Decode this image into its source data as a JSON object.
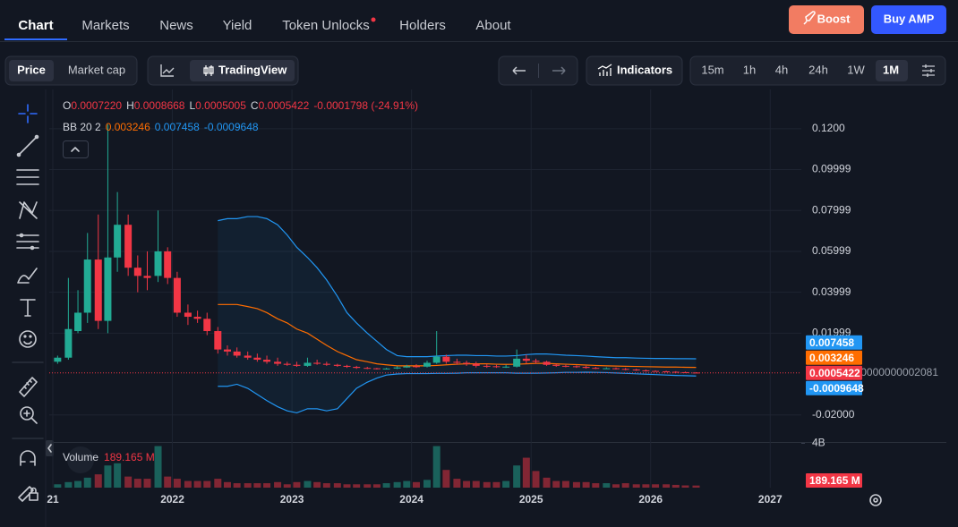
{
  "nav": {
    "tabs": [
      "Chart",
      "Markets",
      "News",
      "Yield",
      "Token Unlocks",
      "Holders",
      "About"
    ],
    "boost": "Boost",
    "buy": "Buy AMP"
  },
  "toolbar": {
    "price": "Price",
    "market_cap": "Market cap",
    "tradingview": "TradingView",
    "indicators": "Indicators",
    "intervals": [
      "15m",
      "1h",
      "4h",
      "24h",
      "1W",
      "1M"
    ]
  },
  "legend": {
    "ohlc": [
      {
        "key": "O",
        "value": "0.0007220"
      },
      {
        "key": "H",
        "value": "0.0008668"
      },
      {
        "key": "L",
        "value": "0.0005005"
      },
      {
        "key": "C",
        "value": "0.0005422"
      }
    ],
    "change": "-0.0001798 (-24.91%)",
    "bb_label": "BB 20 2",
    "volume_label": "Volume",
    "volume_value": "189.165 M"
  },
  "chart": {
    "type": "candlestick",
    "up_color": "#22ab94",
    "down_color": "#f23645",
    "grid": true,
    "x": [
      2021.04,
      2021.13,
      2021.21,
      2021.29,
      2021.38,
      2021.46,
      2021.54,
      2021.63,
      2021.71,
      2021.79,
      2021.88,
      2021.96,
      2022.04,
      2022.13,
      2022.21,
      2022.29,
      2022.38,
      2022.46,
      2022.54,
      2022.63,
      2022.71,
      2022.79,
      2022.88,
      2022.96,
      2023.04,
      2023.13,
      2023.21,
      2023.29,
      2023.38,
      2023.46,
      2023.54,
      2023.63,
      2023.71,
      2023.79,
      2023.88,
      2023.96,
      2024.04,
      2024.13,
      2024.21,
      2024.29,
      2024.38,
      2024.46,
      2024.54,
      2024.63,
      2024.71,
      2024.79,
      2024.88,
      2024.96,
      2025.04,
      2025.13,
      2025.21,
      2025.29,
      2025.38,
      2025.46,
      2025.54,
      2025.63,
      2025.71,
      2025.79,
      2025.88,
      2025.96,
      2026.04,
      2026.13,
      2026.21,
      2026.29,
      2026.38
    ],
    "open": [
      0.006,
      0.008,
      0.021,
      0.03,
      0.056,
      0.026,
      0.057,
      0.073,
      0.052,
      0.048,
      0.048,
      0.06,
      0.047,
      0.03,
      0.028,
      0.027,
      0.021,
      0.012,
      0.011,
      0.009,
      0.008,
      0.007,
      0.006,
      0.005,
      0.0045,
      0.004,
      0.0055,
      0.005,
      0.0045,
      0.004,
      0.0035,
      0.003,
      0.0028,
      0.0025,
      0.0027,
      0.0032,
      0.0038,
      0.0036,
      0.0055,
      0.0085,
      0.006,
      0.0055,
      0.005,
      0.004,
      0.0038,
      0.0035,
      0.0036,
      0.0075,
      0.0065,
      0.006,
      0.0045,
      0.004,
      0.0038,
      0.0035,
      0.003,
      0.0028,
      0.0028,
      0.0025,
      0.0022,
      0.0018,
      0.0015,
      0.0013,
      0.0011,
      0.0009,
      0.000722
    ],
    "high": [
      0.009,
      0.047,
      0.041,
      0.069,
      0.078,
      0.122,
      0.089,
      0.078,
      0.058,
      0.06,
      0.08,
      0.062,
      0.05,
      0.034,
      0.031,
      0.03,
      0.023,
      0.014,
      0.013,
      0.011,
      0.01,
      0.009,
      0.008,
      0.006,
      0.006,
      0.008,
      0.007,
      0.006,
      0.005,
      0.0045,
      0.004,
      0.0035,
      0.003,
      0.003,
      0.0038,
      0.0045,
      0.0048,
      0.0065,
      0.021,
      0.0095,
      0.0075,
      0.0065,
      0.006,
      0.005,
      0.0045,
      0.0045,
      0.012,
      0.0095,
      0.0075,
      0.0065,
      0.005,
      0.0045,
      0.0042,
      0.004,
      0.0035,
      0.0033,
      0.0032,
      0.003,
      0.0026,
      0.0022,
      0.0018,
      0.0016,
      0.0014,
      0.0012,
      0.0008668
    ],
    "low": [
      0.005,
      0.007,
      0.02,
      0.025,
      0.022,
      0.02,
      0.05,
      0.048,
      0.04,
      0.041,
      0.045,
      0.044,
      0.028,
      0.024,
      0.025,
      0.019,
      0.01,
      0.009,
      0.008,
      0.007,
      0.006,
      0.005,
      0.004,
      0.004,
      0.0035,
      0.0035,
      0.0045,
      0.004,
      0.0035,
      0.003,
      0.0025,
      0.0024,
      0.0022,
      0.0022,
      0.0024,
      0.003,
      0.003,
      0.0032,
      0.005,
      0.005,
      0.0045,
      0.004,
      0.0032,
      0.003,
      0.003,
      0.003,
      0.0032,
      0.005,
      0.005,
      0.004,
      0.0035,
      0.0033,
      0.003,
      0.0026,
      0.0024,
      0.0024,
      0.0022,
      0.0018,
      0.0015,
      0.0012,
      0.0011,
      0.0009,
      0.0007,
      0.0006,
      0.0005005
    ],
    "close": [
      0.008,
      0.022,
      0.03,
      0.056,
      0.026,
      0.057,
      0.073,
      0.052,
      0.048,
      0.047,
      0.06,
      0.047,
      0.03,
      0.028,
      0.027,
      0.021,
      0.012,
      0.011,
      0.009,
      0.008,
      0.007,
      0.006,
      0.005,
      0.0045,
      0.004,
      0.0055,
      0.005,
      0.0045,
      0.004,
      0.0035,
      0.003,
      0.0028,
      0.0025,
      0.0027,
      0.0032,
      0.0038,
      0.0036,
      0.0055,
      0.0085,
      0.006,
      0.0055,
      0.005,
      0.004,
      0.0038,
      0.0035,
      0.0036,
      0.0075,
      0.0065,
      0.006,
      0.0045,
      0.004,
      0.0038,
      0.0035,
      0.003,
      0.0028,
      0.0028,
      0.0025,
      0.0022,
      0.0018,
      0.0015,
      0.0013,
      0.0011,
      0.0009,
      0.000722,
      0.0005422
    ],
    "bands": [
      {
        "color": "#ff6d00",
        "values": [
          null,
          null,
          null,
          null,
          null,
          null,
          null,
          null,
          null,
          null,
          null,
          null,
          null,
          null,
          null,
          null,
          0.034,
          0.034,
          0.034,
          0.033,
          0.032,
          0.03,
          0.027,
          0.025,
          0.022,
          0.02,
          0.017,
          0.014,
          0.011,
          0.009,
          0.007,
          0.006,
          0.005,
          0.0045,
          0.004,
          0.004,
          0.004,
          0.004,
          0.0042,
          0.0045,
          0.0048,
          0.005,
          0.005,
          0.005,
          0.0048,
          0.0047,
          0.0048,
          0.005,
          0.0052,
          0.0052,
          0.005,
          0.0048,
          0.0046,
          0.0044,
          0.0042,
          0.004,
          0.0039,
          0.0038,
          0.0037,
          0.0036,
          0.0035,
          0.0034,
          0.0034,
          0.0033,
          0.003246
        ]
      },
      {
        "color": "#2196f3",
        "values": [
          null,
          null,
          null,
          null,
          null,
          null,
          null,
          null,
          null,
          null,
          null,
          null,
          null,
          null,
          null,
          null,
          0.075,
          0.076,
          0.076,
          0.077,
          0.077,
          0.076,
          0.073,
          0.068,
          0.062,
          0.057,
          0.052,
          0.046,
          0.038,
          0.03,
          0.025,
          0.02,
          0.016,
          0.012,
          0.009,
          0.0085,
          0.0085,
          0.0085,
          0.0088,
          0.009,
          0.0092,
          0.0092,
          0.009,
          0.009,
          0.0088,
          0.0088,
          0.009,
          0.0095,
          0.0098,
          0.0098,
          0.0095,
          0.0092,
          0.009,
          0.0088,
          0.0085,
          0.0082,
          0.008,
          0.008,
          0.0078,
          0.0077,
          0.0076,
          0.0076,
          0.0075,
          0.0075,
          0.007458
        ]
      },
      {
        "color": "#2196f3",
        "values": [
          null,
          null,
          null,
          null,
          null,
          null,
          null,
          null,
          null,
          null,
          null,
          null,
          null,
          null,
          null,
          null,
          -0.006,
          -0.006,
          -0.005,
          -0.007,
          -0.01,
          -0.013,
          -0.016,
          -0.018,
          -0.019,
          -0.017,
          -0.017,
          -0.018,
          -0.017,
          -0.012,
          -0.007,
          -0.004,
          -0.002,
          -0.0005,
          0,
          0.0002,
          0.0002,
          0.0002,
          0.0003,
          0.0003,
          0.0004,
          0.0006,
          0.0006,
          0.0006,
          0.0006,
          0.0006,
          0.0004,
          0.0004,
          0.0004,
          0.0005,
          0.0006,
          0.0008,
          0.0008,
          0.0009,
          0.0008,
          0.0007,
          0.0005,
          0.0003,
          0.0001,
          -0.0001,
          -0.0003,
          -0.0005,
          -0.0007,
          -0.0008,
          -0.0009648
        ]
      }
    ],
    "xlim": [
      2020.97,
      2027.26
    ],
    "xticks": [
      {
        "value": 2021,
        "label": "21"
      },
      2022,
      2023,
      2024,
      2025,
      2026,
      2027
    ],
    "ylim": [
      -0.0315,
      0.1348
    ],
    "yticks": [
      {
        "value": 0.12,
        "label": "0.1200"
      },
      0.09999,
      0.07999,
      0.05999,
      0.03999,
      0.01999,
      {
        "value": -0.02,
        "label": "-0.02000"
      }
    ],
    "crosshair_label": "0000000002081",
    "volume": {
      "values": [
        300000000,
        500000000,
        600000000,
        900000000,
        1200000000,
        2000000000,
        2200000000,
        1000000000,
        800000000,
        800000000,
        3750000000,
        1000000000,
        800000000,
        600000000,
        600000000,
        600000000,
        800000000,
        500000000,
        400000000,
        400000000,
        400000000,
        400000000,
        500000000,
        300000000,
        500000000,
        600000000,
        500000000,
        400000000,
        400000000,
        300000000,
        300000000,
        300000000,
        300000000,
        400000000,
        500000000,
        600000000,
        500000000,
        700000000,
        3750000000,
        1600000000,
        800000000,
        600000000,
        600000000,
        500000000,
        500000000,
        600000000,
        2000000000,
        2700000000,
        1500000000,
        900000000,
        600000000,
        600000000,
        500000000,
        500000000,
        400000000,
        400000000,
        300000000,
        400000000,
        300000000,
        300000000,
        300000000,
        300000000,
        250000000,
        200000000,
        189165000
      ],
      "ylim": [
        0,
        4200000000
      ],
      "yticks": [
        {
          "value": 4000000000,
          "label": "4B"
        }
      ],
      "last_label": "189.165 M"
    }
  }
}
